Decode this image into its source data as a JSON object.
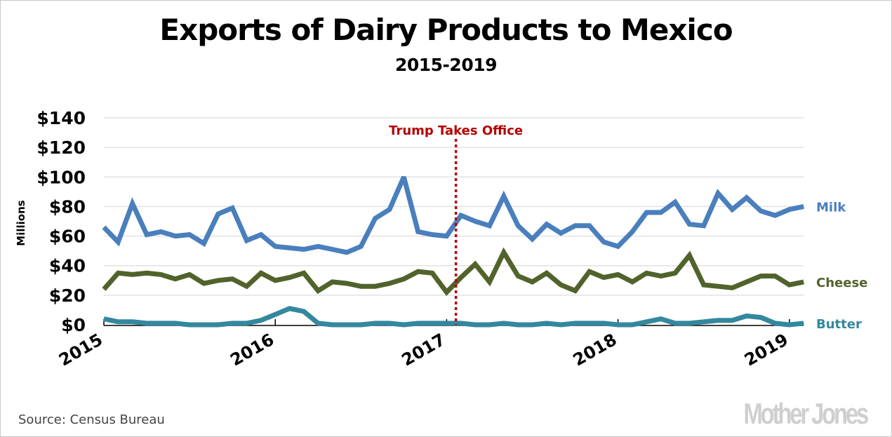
{
  "chart_data": {
    "type": "line",
    "title": "Exports of Dairy Products to Mexico",
    "subtitle": "2015-2019",
    "xlabel": "",
    "ylabel": "Millions",
    "ylim": [
      0,
      140
    ],
    "yticks": [
      0,
      20,
      40,
      60,
      80,
      100,
      120,
      140
    ],
    "ytick_labels": [
      "$0",
      "$20",
      "$40",
      "$60",
      "$80",
      "$100",
      "$120",
      "$140"
    ],
    "xtick_labels": [
      "2015",
      "2016",
      "2017",
      "2018",
      "2019"
    ],
    "x_start": "2015-01",
    "x_frequency": "monthly",
    "x_points": 50,
    "grid": true,
    "legend": "inline-right",
    "annotation": {
      "label": "Trump Takes Office",
      "x_month_index": 24.65,
      "color": "#b40000"
    },
    "series": [
      {
        "name": "Milk",
        "color": "#4a7fbd",
        "values": [
          66,
          56,
          82,
          61,
          63,
          60,
          61,
          55,
          75,
          79,
          57,
          61,
          53,
          52,
          51,
          53,
          51,
          49,
          53,
          72,
          78,
          100,
          63,
          61,
          60,
          74,
          70,
          67,
          87,
          67,
          58,
          68,
          62,
          67,
          67,
          56,
          53,
          63,
          76,
          76,
          83,
          68,
          67,
          89,
          78,
          86,
          77,
          74,
          78,
          80
        ]
      },
      {
        "name": "Cheese",
        "color": "#51632b",
        "values": [
          24,
          35,
          34,
          35,
          34,
          31,
          34,
          28,
          30,
          31,
          26,
          35,
          30,
          32,
          35,
          23,
          29,
          28,
          26,
          26,
          28,
          31,
          36,
          35,
          22,
          32,
          41,
          29,
          49,
          33,
          29,
          35,
          27,
          23,
          36,
          32,
          34,
          29,
          35,
          33,
          35,
          47,
          27,
          26,
          25,
          29,
          33,
          33,
          27,
          29
        ]
      },
      {
        "name": "Butter",
        "color": "#33889e",
        "values": [
          4,
          2,
          2,
          1,
          1,
          1,
          0,
          0,
          0,
          1,
          1,
          3,
          7,
          11,
          9,
          1,
          0,
          0,
          0,
          1,
          1,
          0,
          1,
          1,
          1,
          1,
          0,
          0,
          1,
          0,
          0,
          1,
          0,
          1,
          1,
          1,
          0,
          0,
          2,
          4,
          1,
          1,
          2,
          3,
          3,
          6,
          5,
          1,
          0,
          1
        ]
      }
    ]
  },
  "footer": {
    "source": "Source: Census Bureau",
    "logo": "Mother Jones"
  }
}
